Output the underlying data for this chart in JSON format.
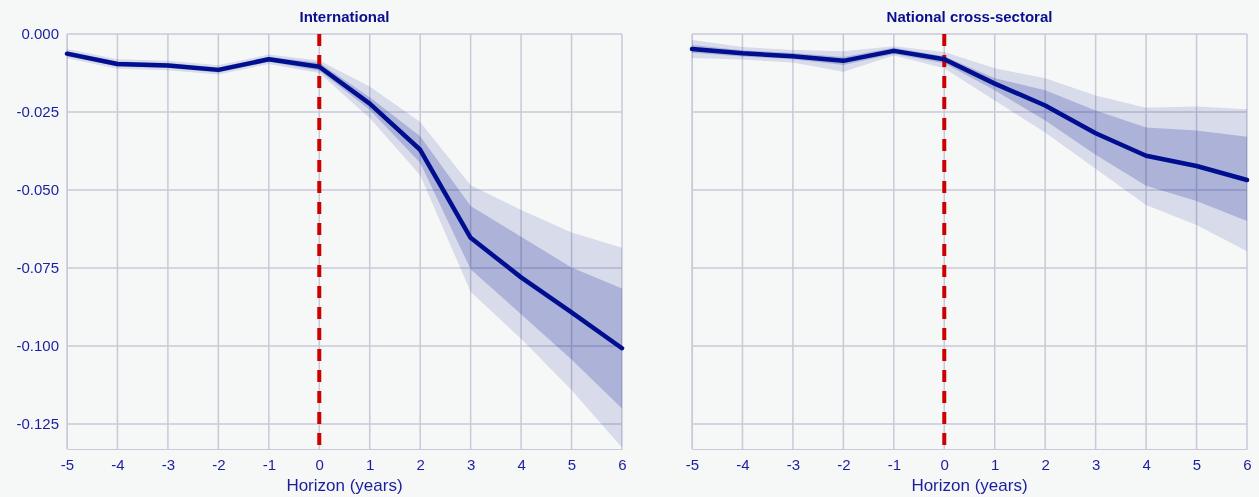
{
  "chart_data": [
    {
      "type": "line",
      "title": "International",
      "xlabel": "Horizon (years)",
      "x": [
        -5,
        -4,
        -3,
        -2,
        -1,
        0,
        1,
        2,
        3,
        4,
        5,
        6
      ],
      "xlim": [
        -5,
        6
      ],
      "xticks": [
        -5,
        -4,
        -3,
        -2,
        -1,
        0,
        1,
        2,
        3,
        4,
        5,
        6
      ],
      "ylim": [
        -0.133,
        0
      ],
      "yticks": [
        {
          "value": 0,
          "label": "0.000"
        },
        {
          "value": -0.025,
          "label": "-0.025"
        },
        {
          "value": -0.05,
          "label": "-0.050"
        },
        {
          "value": -0.075,
          "label": "-0.075"
        },
        {
          "value": -0.1,
          "label": "-0.100"
        },
        {
          "value": -0.125,
          "label": "-0.125"
        }
      ],
      "grid": true,
      "ref_lines": [
        {
          "axis": "x",
          "value": 0,
          "color": "#cc0000",
          "line_style": "dashed"
        }
      ],
      "series": [
        {
          "color": "#000f8f",
          "values": [
            null,
            null,
            null,
            null,
            null,
            null,
            null,
            null,
            null,
            null,
            null,
            null
          ],
          "lower": [
            -0.0078,
            -0.0111,
            -0.0116,
            -0.013,
            -0.0096,
            -0.0125,
            -0.0269,
            -0.0453,
            -0.0826,
            -0.0977,
            -0.1141,
            -0.1325
          ],
          "upper": [
            -0.0048,
            -0.0081,
            -0.0086,
            -0.01,
            -0.0066,
            -0.0085,
            -0.0168,
            -0.0282,
            -0.0485,
            -0.0564,
            -0.0636,
            -0.0685
          ]
        },
        {
          "color": "#000f8f",
          "values": [
            -0.0063,
            -0.0096,
            -0.0101,
            -0.0115,
            -0.0081,
            -0.0105,
            -0.0223,
            -0.0371,
            -0.0653,
            -0.078,
            -0.0892,
            -0.1007
          ],
          "lower": [
            -0.0071,
            -0.0104,
            -0.0109,
            -0.0123,
            -0.0089,
            -0.0118,
            -0.0243,
            -0.0413,
            -0.0754,
            -0.0898,
            -0.1043,
            -0.12
          ],
          "upper": [
            -0.0055,
            -0.0088,
            -0.0093,
            -0.0107,
            -0.0073,
            -0.0092,
            -0.0203,
            -0.0328,
            -0.0551,
            -0.065,
            -0.0748,
            -0.0816
          ]
        }
      ]
    },
    {
      "type": "line",
      "title": "National cross-sectoral",
      "xlabel": "Horizon (years)",
      "x": [
        -5,
        -4,
        -3,
        -2,
        -1,
        0,
        1,
        2,
        3,
        4,
        5,
        6
      ],
      "xlim": [
        -5,
        6
      ],
      "xticks": [
        -5,
        -4,
        -3,
        -2,
        -1,
        0,
        1,
        2,
        3,
        4,
        5,
        6
      ],
      "ylim": [
        -0.133,
        0
      ],
      "yticks": [
        {
          "value": 0,
          "label": null
        },
        {
          "value": -0.025,
          "label": null
        },
        {
          "value": -0.05,
          "label": null
        },
        {
          "value": -0.075,
          "label": null
        },
        {
          "value": -0.1,
          "label": null
        },
        {
          "value": -0.125,
          "label": null
        }
      ],
      "tick_labels": "x",
      "grid": true,
      "ref_lines": [
        {
          "axis": "x",
          "value": 0,
          "color": "#cc0000",
          "line_style": "dashed"
        }
      ],
      "series": [
        {
          "color": "#000f8f",
          "values": [
            null,
            null,
            null,
            null,
            null,
            null,
            null,
            null,
            null,
            null,
            null,
            null
          ],
          "lower": [
            -0.0077,
            -0.0082,
            -0.0091,
            -0.0121,
            -0.0069,
            -0.011,
            -0.0213,
            -0.0316,
            -0.0432,
            -0.0548,
            -0.0612,
            -0.0696
          ],
          "upper": [
            -0.0019,
            -0.0042,
            -0.0051,
            -0.0055,
            -0.0039,
            -0.0058,
            -0.011,
            -0.0142,
            -0.0197,
            -0.0236,
            -0.0232,
            -0.0241
          ]
        },
        {
          "color": "#000f8f",
          "values": [
            -0.0048,
            -0.0062,
            -0.0071,
            -0.0086,
            -0.0054,
            -0.0081,
            -0.0159,
            -0.0229,
            -0.0318,
            -0.039,
            -0.0423,
            -0.0468
          ],
          "lower": [
            -0.006,
            -0.0072,
            -0.0081,
            -0.0099,
            -0.0064,
            -0.0094,
            -0.018,
            -0.0277,
            -0.0387,
            -0.0486,
            -0.0535,
            -0.0599
          ],
          "upper": [
            -0.0035,
            -0.0052,
            -0.0061,
            -0.0074,
            -0.0044,
            -0.0071,
            -0.0142,
            -0.018,
            -0.0245,
            -0.03,
            -0.0309,
            -0.0329
          ]
        }
      ]
    }
  ]
}
